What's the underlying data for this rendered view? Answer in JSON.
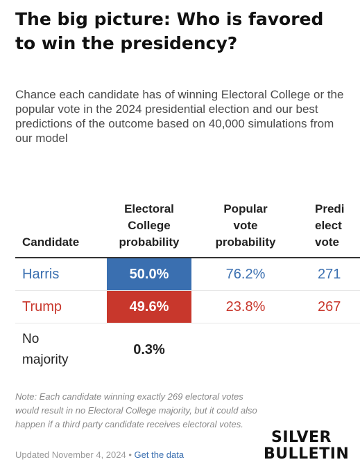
{
  "header": {
    "title": "The big picture: Who is favored to win the presidency?",
    "subtitle": "Chance each candidate has of winning Electoral College or the popular vote in the 2024 presidential election and our best predictions of the outcome based on 40,000 simulations from our model"
  },
  "colors": {
    "harris": "#3a6fb0",
    "trump": "#c8372c",
    "link": "#3a6fb0"
  },
  "chart_data": {
    "type": "table",
    "columns": [
      "Candidate",
      "Electoral College probability",
      "Popular vote probability",
      "Predi elect vote"
    ],
    "rows": [
      {
        "candidate": "Harris",
        "ec_prob": "50.0%",
        "pv_prob": "76.2%",
        "pred_ev": "271"
      },
      {
        "candidate": "Trump",
        "ec_prob": "49.6%",
        "pv_prob": "23.8%",
        "pred_ev": "267"
      },
      {
        "candidate": "No majority",
        "ec_prob": "0.3%",
        "pv_prob": "",
        "pred_ev": ""
      }
    ]
  },
  "table": {
    "headers": {
      "candidate": "Candidate",
      "ec": [
        "Electoral",
        "College",
        "probability"
      ],
      "pv": [
        "Popular",
        "vote",
        "probability"
      ],
      "pred": [
        "Predi",
        "elect",
        "vote"
      ]
    },
    "rows": {
      "harris": {
        "candidate": "Harris",
        "ec": "50.0%",
        "pv": "76.2%",
        "pred": "271"
      },
      "trump": {
        "candidate": "Trump",
        "ec": "49.6%",
        "pv": "23.8%",
        "pred": "267"
      },
      "none": {
        "candidate_l1": "No",
        "candidate_l2": "majority",
        "ec": "0.3%"
      }
    }
  },
  "footer": {
    "note": "Note: Each candidate winning exactly 269 electoral votes would result in no Electoral College majority, but it could also happen if a third party candidate receives electoral votes.",
    "updated": "Updated November 4, 2024",
    "separator": "•",
    "link": "Get the data",
    "logo_line1": "SILVER",
    "logo_line2": "BULLETIN"
  }
}
